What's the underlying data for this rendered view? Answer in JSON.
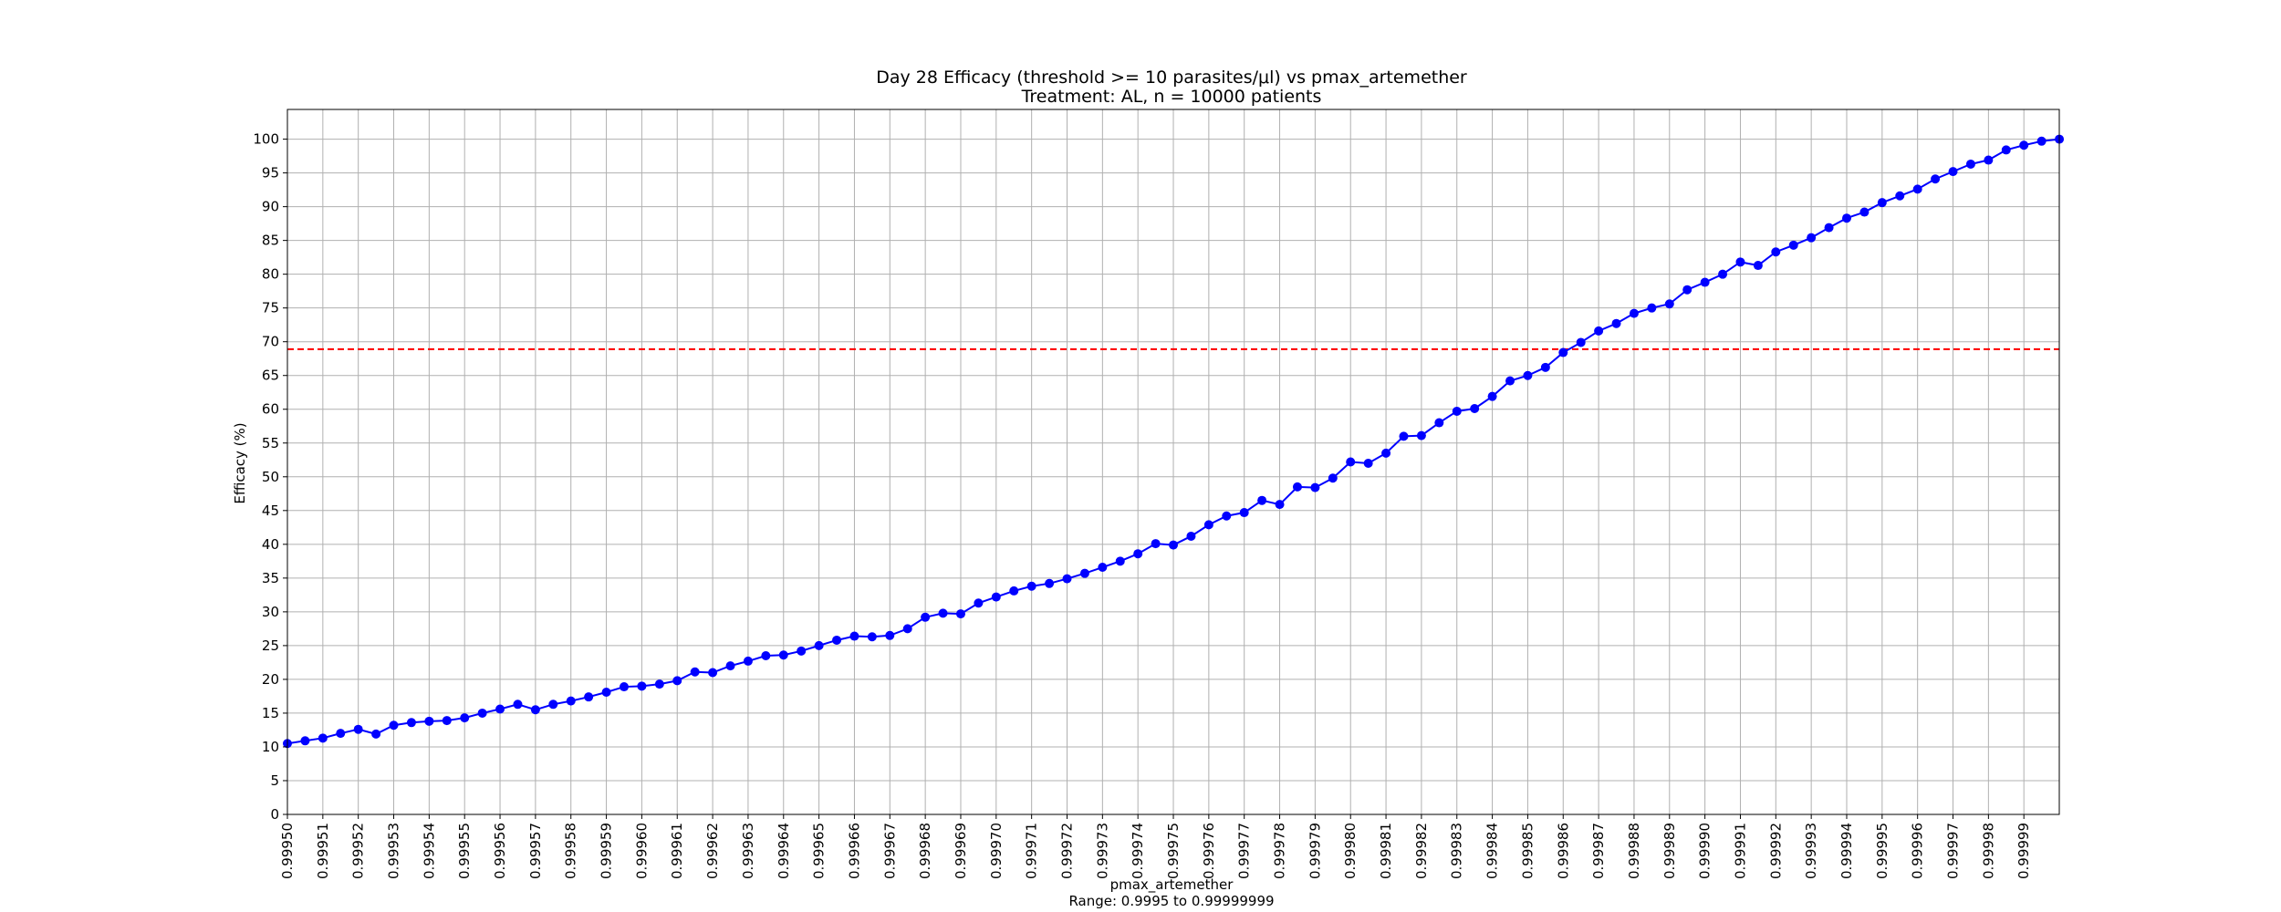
{
  "chart_data": {
    "type": "line",
    "title": "Day 28 Efficacy (threshold >= 10 parasites/μl) vs pmax_artemether",
    "subtitle": "Treatment: AL, n = 10000 patients",
    "xlabel": "pmax_artemether",
    "xlabel_note": "Range: 0.9995 to 0.99999999",
    "ylabel": "Efficacy (%)",
    "xlim": [
      0.9995,
      0.99999999
    ],
    "ylim": [
      0,
      104.4
    ],
    "grid": true,
    "x_ticks": [
      "0.99950",
      "0.99951",
      "0.99952",
      "0.99953",
      "0.99954",
      "0.99955",
      "0.99956",
      "0.99957",
      "0.99958",
      "0.99959",
      "0.99960",
      "0.99961",
      "0.99962",
      "0.99963",
      "0.99964",
      "0.99965",
      "0.99966",
      "0.99967",
      "0.99968",
      "0.99969",
      "0.99970",
      "0.99971",
      "0.99972",
      "0.99973",
      "0.99974",
      "0.99975",
      "0.99976",
      "0.99977",
      "0.99978",
      "0.99979",
      "0.99980",
      "0.99981",
      "0.99982",
      "0.99983",
      "0.99984",
      "0.99985",
      "0.99986",
      "0.99987",
      "0.99988",
      "0.99989",
      "0.99990",
      "0.99991",
      "0.99992",
      "0.99993",
      "0.99994",
      "0.99995",
      "0.99996",
      "0.99997",
      "0.99998",
      "0.99999"
    ],
    "y_ticks": [
      "0",
      "5",
      "10",
      "15",
      "20",
      "25",
      "30",
      "35",
      "40",
      "45",
      "50",
      "55",
      "60",
      "65",
      "70",
      "75",
      "80",
      "85",
      "90",
      "95",
      "100"
    ],
    "reference_line": {
      "y": 68.9,
      "color": "#ff0000",
      "style": "dashed"
    },
    "series": [
      {
        "color": "#0000ff",
        "marker": "circle",
        "x_start": 0.9995,
        "x_step": 5e-06,
        "values": [
          10.5,
          10.9,
          11.3,
          12.0,
          12.6,
          11.9,
          13.2,
          13.6,
          13.8,
          13.9,
          14.3,
          15.0,
          15.6,
          16.3,
          15.5,
          16.3,
          16.8,
          17.4,
          18.1,
          18.9,
          19.0,
          19.3,
          19.8,
          21.1,
          21.0,
          22.0,
          22.7,
          23.5,
          23.6,
          24.2,
          25.0,
          25.8,
          26.4,
          26.3,
          26.5,
          27.5,
          29.2,
          29.8,
          29.7,
          31.3,
          32.2,
          33.1,
          33.8,
          34.2,
          34.9,
          35.7,
          36.6,
          37.5,
          38.6,
          40.1,
          39.9,
          41.2,
          42.9,
          44.2,
          44.7,
          46.5,
          45.9,
          48.5,
          48.4,
          49.8,
          52.2,
          52.0,
          53.5,
          56.0,
          56.1,
          58.0,
          59.7,
          60.1,
          61.9,
          64.2,
          65.0,
          66.2,
          68.4,
          69.9,
          71.6,
          72.7,
          74.2,
          75.0,
          75.6,
          77.7,
          78.8,
          80.0,
          81.8,
          81.3,
          83.3,
          84.3,
          85.4,
          86.9,
          88.3,
          89.2,
          90.6,
          91.6,
          92.6,
          94.1,
          95.2,
          96.3,
          96.9,
          98.4,
          99.1,
          99.7,
          100.0
        ]
      }
    ]
  }
}
